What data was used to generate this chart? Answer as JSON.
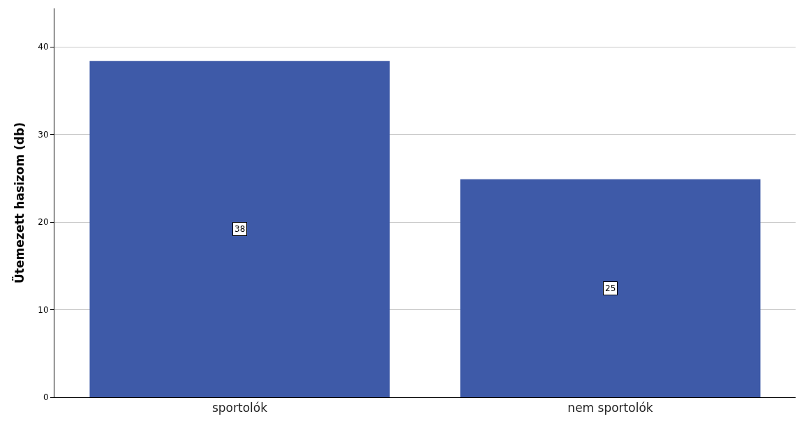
{
  "chart_data": {
    "type": "bar",
    "ylabel": "Ütemezett hasizom (db)",
    "categories": [
      "sportolók",
      "nem sportolók"
    ],
    "values": [
      38.4,
      24.9
    ],
    "value_labels": [
      "38",
      "25"
    ],
    "color": "#3e5aa8",
    "ylim": [
      0,
      44.4
    ],
    "yticks": [
      0,
      10,
      20,
      30,
      40
    ],
    "grid": "y",
    "legend": false
  }
}
